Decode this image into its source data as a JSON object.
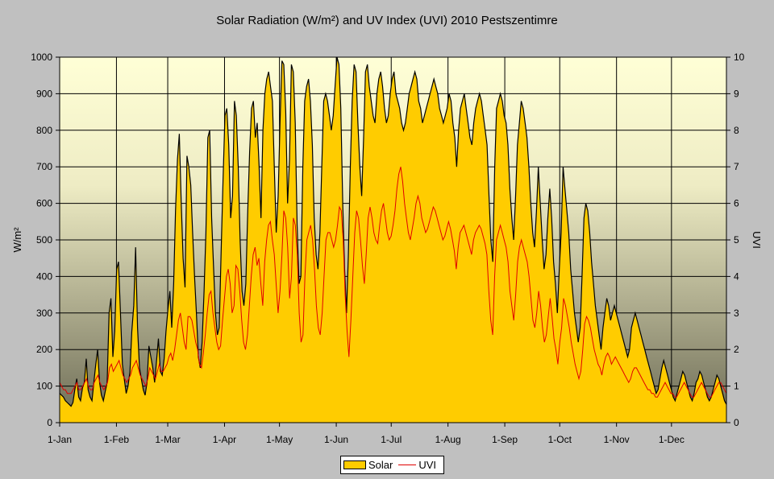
{
  "chart_data": {
    "type": "area",
    "title": "Solar Radiation (W/m²) and UV Index (UVI) 2010 Pestszentimre",
    "xlabel": "",
    "ylabel": "W/m²",
    "y2label": "UVI",
    "ylim": [
      0,
      1000
    ],
    "y2lim": [
      0,
      10
    ],
    "yticks": [
      "0",
      "100",
      "200",
      "300",
      "400",
      "500",
      "600",
      "700",
      "800",
      "900",
      "1000"
    ],
    "y2ticks": [
      "0",
      "1",
      "2",
      "3",
      "4",
      "5",
      "6",
      "7",
      "8",
      "9",
      "10"
    ],
    "xticks": [
      "1-Jan",
      "1-Feb",
      "1-Mar",
      "1-Apr",
      "1-May",
      "1-Jun",
      "1-Jul",
      "1-Aug",
      "1-Sep",
      "1-Oct",
      "1-Nov",
      "1-Dec"
    ],
    "xtick_days": [
      0,
      31,
      59,
      90,
      120,
      151,
      181,
      212,
      243,
      273,
      304,
      334
    ],
    "days_in_year": 365,
    "grid": true,
    "legend": "bottom-center",
    "series": [
      {
        "name": "Solar",
        "axis": "left",
        "kind": "area",
        "color": "#ffcc00",
        "outline": "#000000",
        "values": [
          80,
          75,
          70,
          60,
          55,
          50,
          45,
          55,
          90,
          120,
          70,
          60,
          95,
          110,
          175,
          90,
          70,
          60,
          110,
          160,
          200,
          110,
          75,
          60,
          85,
          110,
          300,
          340,
          180,
          250,
          420,
          440,
          300,
          160,
          120,
          80,
          100,
          140,
          250,
          320,
          480,
          260,
          150,
          120,
          90,
          75,
          110,
          210,
          180,
          150,
          110,
          170,
          230,
          140,
          130,
          175,
          250,
          310,
          360,
          260,
          380,
          580,
          720,
          790,
          600,
          450,
          370,
          730,
          700,
          650,
          520,
          400,
          300,
          180,
          150,
          220,
          360,
          520,
          780,
          800,
          560,
          430,
          300,
          240,
          260,
          470,
          660,
          840,
          860,
          760,
          560,
          620,
          880,
          840,
          700,
          500,
          360,
          320,
          380,
          580,
          740,
          860,
          880,
          780,
          820,
          700,
          560,
          800,
          900,
          940,
          960,
          920,
          880,
          700,
          520,
          620,
          820,
          990,
          980,
          850,
          600,
          720,
          980,
          960,
          820,
          540,
          380,
          400,
          700,
          880,
          920,
          940,
          880,
          760,
          560,
          460,
          420,
          520,
          700,
          880,
          900,
          880,
          840,
          800,
          840,
          920,
          1000,
          980,
          860,
          600,
          420,
          300,
          460,
          700,
          880,
          980,
          960,
          820,
          700,
          620,
          780,
          960,
          980,
          920,
          880,
          840,
          820,
          900,
          940,
          960,
          920,
          860,
          820,
          840,
          900,
          940,
          960,
          900,
          880,
          860,
          820,
          800,
          820,
          860,
          900,
          920,
          940,
          960,
          940,
          880,
          860,
          820,
          840,
          860,
          880,
          900,
          920,
          940,
          920,
          900,
          860,
          840,
          820,
          840,
          860,
          900,
          880,
          820,
          780,
          700,
          800,
          860,
          880,
          900,
          860,
          820,
          780,
          760,
          820,
          860,
          880,
          900,
          880,
          840,
          800,
          760,
          620,
          500,
          440,
          700,
          860,
          880,
          900,
          880,
          840,
          820,
          760,
          640,
          560,
          500,
          620,
          760,
          820,
          880,
          860,
          820,
          780,
          700,
          600,
          520,
          480,
          580,
          700,
          600,
          500,
          420,
          460,
          560,
          640,
          560,
          440,
          380,
          300,
          420,
          520,
          700,
          640,
          580,
          520,
          420,
          360,
          300,
          260,
          220,
          260,
          400,
          560,
          600,
          580,
          520,
          440,
          380,
          320,
          280,
          240,
          200,
          260,
          300,
          340,
          320,
          280,
          300,
          320,
          300,
          280,
          260,
          240,
          220,
          200,
          180,
          200,
          260,
          280,
          300,
          280,
          260,
          240,
          220,
          200,
          180,
          160,
          140,
          120,
          100,
          80,
          90,
          120,
          150,
          170,
          150,
          130,
          110,
          90,
          70,
          60,
          80,
          100,
          120,
          140,
          130,
          110,
          90,
          70,
          60,
          80,
          110,
          120,
          140,
          130,
          110,
          90,
          70,
          60,
          70,
          90,
          110,
          130,
          120,
          100,
          80,
          60,
          50
        ]
      },
      {
        "name": "UVI",
        "axis": "right",
        "kind": "line",
        "color": "#e00000",
        "values": [
          1.1,
          1.0,
          0.9,
          0.9,
          0.8,
          0.8,
          0.8,
          0.9,
          1.0,
          1.1,
          0.9,
          0.9,
          1.0,
          1.1,
          1.2,
          1.0,
          0.9,
          0.9,
          1.1,
          1.2,
          1.3,
          1.1,
          1.0,
          0.9,
          1.0,
          1.1,
          1.5,
          1.6,
          1.4,
          1.5,
          1.6,
          1.7,
          1.5,
          1.3,
          1.2,
          1.1,
          1.2,
          1.3,
          1.5,
          1.6,
          1.7,
          1.5,
          1.3,
          1.2,
          1.1,
          1.0,
          1.2,
          1.5,
          1.4,
          1.3,
          1.2,
          1.4,
          1.6,
          1.4,
          1.4,
          1.5,
          1.6,
          1.8,
          1.9,
          1.7,
          2.0,
          2.4,
          2.8,
          3.0,
          2.6,
          2.2,
          2.0,
          2.9,
          2.9,
          2.8,
          2.5,
          2.2,
          2.0,
          1.6,
          1.5,
          1.9,
          2.4,
          3.0,
          3.5,
          3.6,
          3.0,
          2.6,
          2.2,
          2.0,
          2.1,
          2.8,
          3.4,
          4.0,
          4.2,
          3.8,
          3.0,
          3.2,
          4.3,
          4.2,
          3.6,
          2.8,
          2.2,
          2.0,
          2.4,
          3.2,
          4.0,
          4.6,
          4.8,
          4.3,
          4.5,
          3.8,
          3.2,
          4.4,
          5.0,
          5.4,
          5.5,
          5.0,
          4.6,
          3.8,
          3.0,
          3.6,
          4.6,
          5.8,
          5.6,
          4.8,
          3.4,
          4.0,
          5.6,
          5.4,
          4.6,
          3.0,
          2.2,
          2.4,
          4.0,
          5.0,
          5.2,
          5.4,
          5.0,
          4.2,
          3.2,
          2.6,
          2.4,
          3.0,
          4.0,
          5.0,
          5.2,
          5.2,
          5.0,
          4.8,
          5.0,
          5.4,
          5.9,
          5.8,
          5.0,
          3.5,
          2.5,
          1.8,
          2.8,
          4.0,
          5.2,
          5.8,
          5.6,
          5.0,
          4.3,
          3.8,
          4.6,
          5.6,
          5.9,
          5.6,
          5.2,
          5.0,
          4.9,
          5.4,
          5.8,
          6.0,
          5.6,
          5.2,
          5.0,
          5.1,
          5.4,
          5.8,
          6.4,
          6.8,
          7.0,
          6.6,
          6.0,
          5.6,
          5.2,
          5.0,
          5.3,
          5.6,
          6.0,
          6.2,
          6.0,
          5.6,
          5.4,
          5.2,
          5.3,
          5.5,
          5.7,
          5.9,
          5.8,
          5.6,
          5.4,
          5.2,
          5.0,
          5.1,
          5.3,
          5.5,
          5.3,
          5.0,
          4.7,
          4.2,
          4.8,
          5.2,
          5.3,
          5.4,
          5.2,
          5.0,
          4.8,
          4.6,
          5.0,
          5.2,
          5.3,
          5.4,
          5.3,
          5.1,
          4.9,
          4.6,
          3.6,
          2.8,
          2.4,
          4.0,
          5.0,
          5.2,
          5.4,
          5.2,
          5.0,
          4.8,
          4.4,
          3.6,
          3.2,
          2.8,
          3.5,
          4.4,
          4.8,
          5.0,
          4.8,
          4.6,
          4.4,
          4.0,
          3.4,
          2.8,
          2.6,
          3.0,
          3.6,
          3.2,
          2.6,
          2.2,
          2.4,
          2.9,
          3.4,
          2.9,
          2.3,
          2.0,
          1.6,
          2.2,
          2.6,
          3.4,
          3.2,
          2.9,
          2.6,
          2.2,
          1.9,
          1.6,
          1.4,
          1.2,
          1.4,
          2.0,
          2.7,
          2.9,
          2.8,
          2.6,
          2.3,
          2.0,
          1.8,
          1.6,
          1.5,
          1.3,
          1.6,
          1.8,
          1.9,
          1.8,
          1.6,
          1.7,
          1.8,
          1.7,
          1.6,
          1.5,
          1.4,
          1.3,
          1.2,
          1.1,
          1.2,
          1.4,
          1.5,
          1.5,
          1.4,
          1.3,
          1.2,
          1.1,
          1.0,
          0.9,
          0.9,
          0.8,
          0.8,
          0.7,
          0.7,
          0.8,
          0.9,
          1.0,
          1.1,
          1.0,
          0.9,
          0.8,
          0.8,
          0.7,
          0.7,
          0.8,
          0.9,
          1.0,
          1.1,
          1.0,
          0.9,
          0.8,
          0.7,
          0.7,
          0.8,
          0.9,
          1.0,
          1.1,
          1.0,
          0.9,
          0.8,
          0.7,
          0.7,
          0.8,
          0.9,
          1.0,
          1.1,
          1.1,
          1.0,
          0.9,
          0.8
        ]
      }
    ]
  }
}
